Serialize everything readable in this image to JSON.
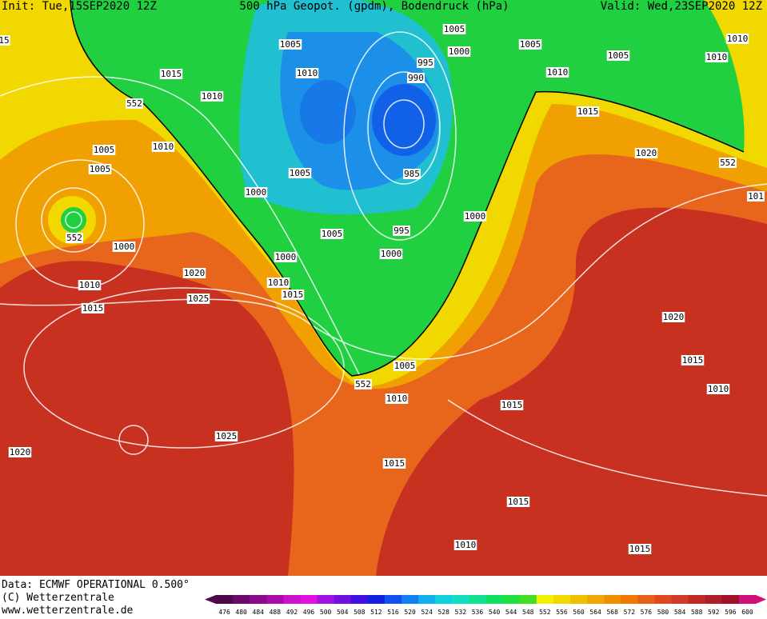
{
  "header": {
    "init": "Init: Tue,15SEP2020 12Z",
    "title": "500 hPa Geopot. (gpdm), Bodendruck (hPa)",
    "valid": "Valid: Wed,23SEP2020 12Z"
  },
  "isobar_labels": [
    "15",
    "1005",
    "1005",
    "1000",
    "1005",
    "1005",
    "1010",
    "1010",
    "995",
    "990",
    "1015",
    "1010",
    "1010",
    "552",
    "1010",
    "1015",
    "1005",
    "1010",
    "1020",
    "552",
    "1005",
    "1005",
    "985",
    "1000",
    "101",
    "1000",
    "552",
    "1005",
    "995",
    "1000",
    "1000",
    "1000",
    "1020",
    "1010",
    "1010",
    "1015",
    "1025",
    "1015",
    "1020",
    "1015",
    "1005",
    "552",
    "1010",
    "1010",
    "1015",
    "1025",
    "1020",
    "1015",
    "1015",
    "1010",
    "1015"
  ],
  "footer": [
    "Data: ECMWF OPERATIONAL 0.500°",
    "(C) Wetterzentrale",
    "www.wetterzentrale.de"
  ],
  "colorbar": {
    "ticks": [
      476,
      480,
      484,
      488,
      492,
      496,
      500,
      504,
      508,
      512,
      516,
      520,
      524,
      528,
      532,
      536,
      540,
      544,
      548,
      552,
      556,
      560,
      564,
      568,
      572,
      576,
      580,
      584,
      588,
      592,
      596,
      600
    ],
    "colors": [
      "#4a0a4a",
      "#6a0a6a",
      "#8a0a8a",
      "#aa0aaa",
      "#cc10cc",
      "#e010e0",
      "#a010e0",
      "#7010e0",
      "#4010e0",
      "#1020e0",
      "#1050f0",
      "#1080f0",
      "#10b0f0",
      "#10d0e0",
      "#10e0c0",
      "#10e090",
      "#10e060",
      "#20e040",
      "#40e020",
      "#f0f000",
      "#f0d800",
      "#f0c000",
      "#f0a800",
      "#f09000",
      "#f07800",
      "#e86018",
      "#e04820",
      "#d03828",
      "#c02828",
      "#b01c28",
      "#a01028",
      "#d0107a"
    ]
  }
}
